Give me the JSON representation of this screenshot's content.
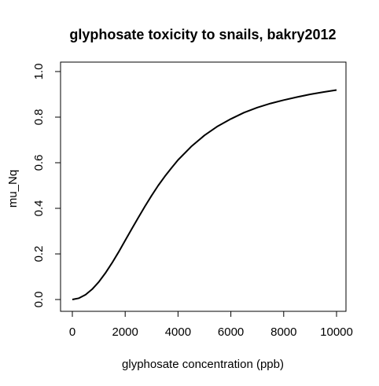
{
  "chart_data": {
    "type": "line",
    "title": "glyphosate toxicity to snails, bakry2012",
    "xlabel": "glyphosate concentration (ppb)",
    "ylabel": "mu_Nq",
    "xlim": [
      0,
      10000
    ],
    "ylim": [
      0.0,
      1.0
    ],
    "xticks": [
      0,
      2000,
      4000,
      6000,
      8000,
      10000
    ],
    "xtick_labels": [
      "0",
      "2000",
      "4000",
      "6000",
      "8000",
      "10000"
    ],
    "yticks": [
      0.0,
      0.2,
      0.4,
      0.6,
      0.8,
      1.0
    ],
    "ytick_labels": [
      "0.0",
      "0.2",
      "0.4",
      "0.6",
      "0.8",
      "1.0"
    ],
    "grid": false,
    "legend": "none",
    "series": [
      {
        "color": "#000000",
        "x": [
          0,
          250,
          500,
          750,
          1000,
          1250,
          1500,
          1750,
          2000,
          2250,
          2500,
          2750,
          3000,
          3250,
          3500,
          3750,
          4000,
          4500,
          5000,
          5500,
          6000,
          6500,
          7000,
          7500,
          8000,
          8500,
          9000,
          9500,
          10000
        ],
        "y": [
          0.0,
          0.006,
          0.021,
          0.045,
          0.077,
          0.116,
          0.16,
          0.208,
          0.259,
          0.31,
          0.36,
          0.409,
          0.456,
          0.5,
          0.54,
          0.577,
          0.612,
          0.671,
          0.72,
          0.76,
          0.792,
          0.82,
          0.842,
          0.86,
          0.875,
          0.888,
          0.9,
          0.91,
          0.919
        ]
      }
    ]
  }
}
